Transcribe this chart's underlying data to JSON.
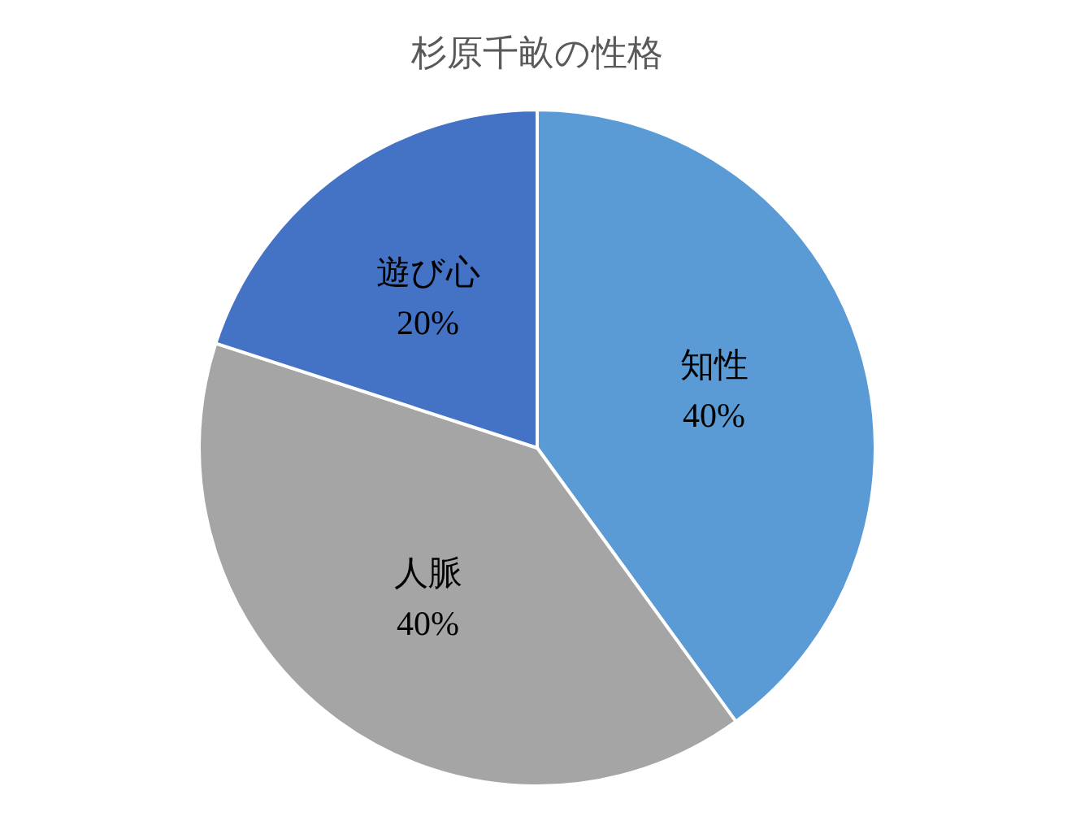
{
  "chart_data": {
    "type": "pie",
    "title": "杉原千畝の性格",
    "categories": [
      "知性",
      "人脈",
      "遊び心"
    ],
    "values": [
      40,
      40,
      20
    ],
    "colors": [
      "#5b9bd5",
      "#a5a5a5",
      "#4472c4"
    ],
    "value_labels": [
      "40%",
      "40%",
      "20%"
    ],
    "legend": false
  }
}
